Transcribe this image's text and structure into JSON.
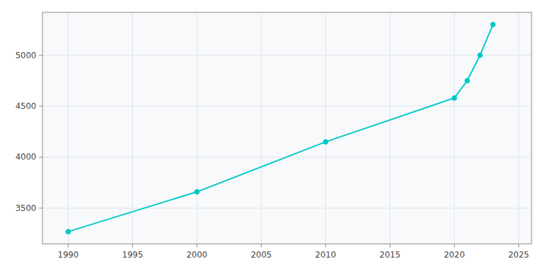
{
  "chart_data": {
    "type": "line",
    "x": [
      1990,
      2000,
      2010,
      2020,
      2021,
      2022,
      2023
    ],
    "values": [
      3270,
      3660,
      4150,
      4580,
      4750,
      5000,
      5300
    ],
    "color": "#00C8C8",
    "marker": "circle",
    "xlim": [
      1988,
      2026
    ],
    "ylim": [
      3150,
      5420
    ],
    "xticks": [
      1990,
      1995,
      2000,
      2005,
      2010,
      2015,
      2020,
      2025
    ],
    "yticks": [
      3500,
      4000,
      4500,
      5000
    ],
    "grid": true
  }
}
